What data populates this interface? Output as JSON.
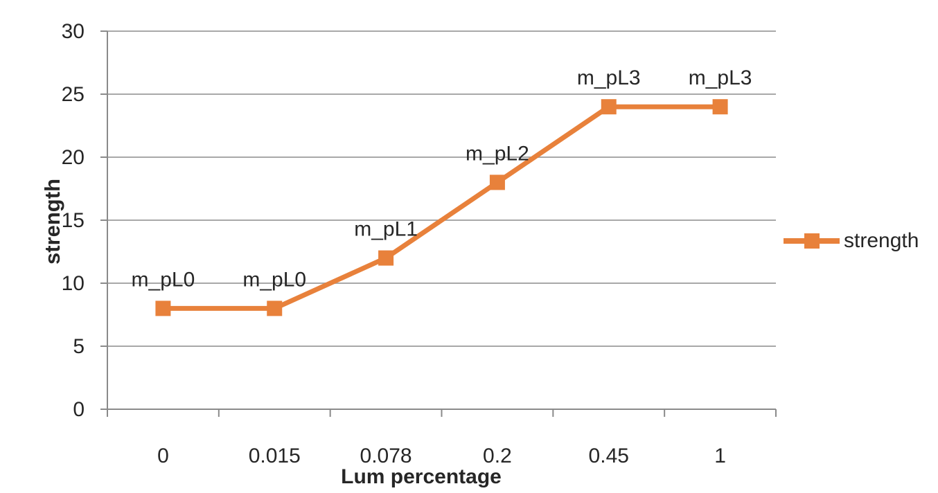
{
  "chart_data": {
    "type": "line",
    "categories": [
      "0",
      "0.015",
      "0.078",
      "0.2",
      "0.45",
      "1"
    ],
    "series": [
      {
        "name": "strength",
        "values": [
          8,
          8,
          12,
          18,
          24,
          24
        ]
      }
    ],
    "point_labels": [
      "m_pL0",
      "m_pL0",
      "m_pL1",
      "m_pL2",
      "m_pL3",
      "m_pL3"
    ],
    "title": "",
    "xlabel": "Lum percentage",
    "ylabel": "strength",
    "ylim": [
      0,
      30
    ],
    "ytick_step": 5,
    "yticks": [
      "0",
      "5",
      "10",
      "15",
      "20",
      "25",
      "30"
    ],
    "grid": true,
    "legend_position": "right",
    "legend_entries": [
      "strength"
    ],
    "series_color": "#E8813B",
    "gridline_color": "#A8A8A8",
    "axis_color": "#8A8A8A",
    "text_color": "#262626"
  }
}
